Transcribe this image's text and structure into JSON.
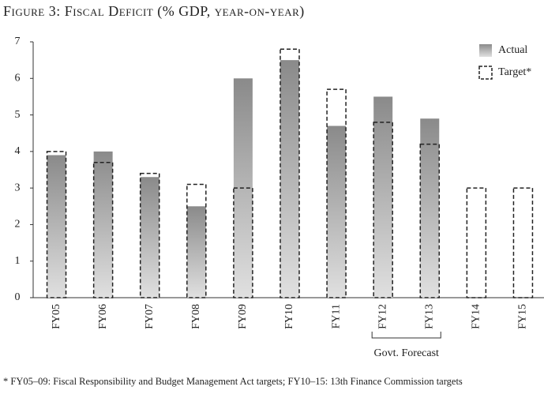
{
  "chart_data": {
    "type": "bar",
    "title": "Figure 3: Fiscal Deficit (% GDP, year-on-year)",
    "categories": [
      "FY05",
      "FY06",
      "FY07",
      "FY08",
      "FY09",
      "FY10",
      "FY11",
      "FY12",
      "FY13",
      "FY14",
      "FY15"
    ],
    "series": [
      {
        "name": "Actual",
        "color": "#8c8c8c",
        "style": "filled",
        "values": [
          3.9,
          4.0,
          3.3,
          2.5,
          6.0,
          6.5,
          4.7,
          5.5,
          4.9,
          null,
          null
        ]
      },
      {
        "name": "Target*",
        "color": "#222222",
        "style": "dashed",
        "values": [
          4.0,
          3.7,
          3.4,
          3.1,
          3.0,
          6.8,
          5.7,
          4.8,
          4.2,
          3.0,
          3.0
        ]
      }
    ],
    "ylim": [
      0,
      7
    ],
    "yticks": [
      0,
      1,
      2,
      3,
      4,
      5,
      6,
      7
    ],
    "grid": false,
    "legend": "upper-right",
    "annotation": "Govt. Forecast",
    "footnote": "* FY05–09: Fiscal Responsibility and Budget Management Act targets; FY10–15: 13th Finance Commission targets"
  }
}
